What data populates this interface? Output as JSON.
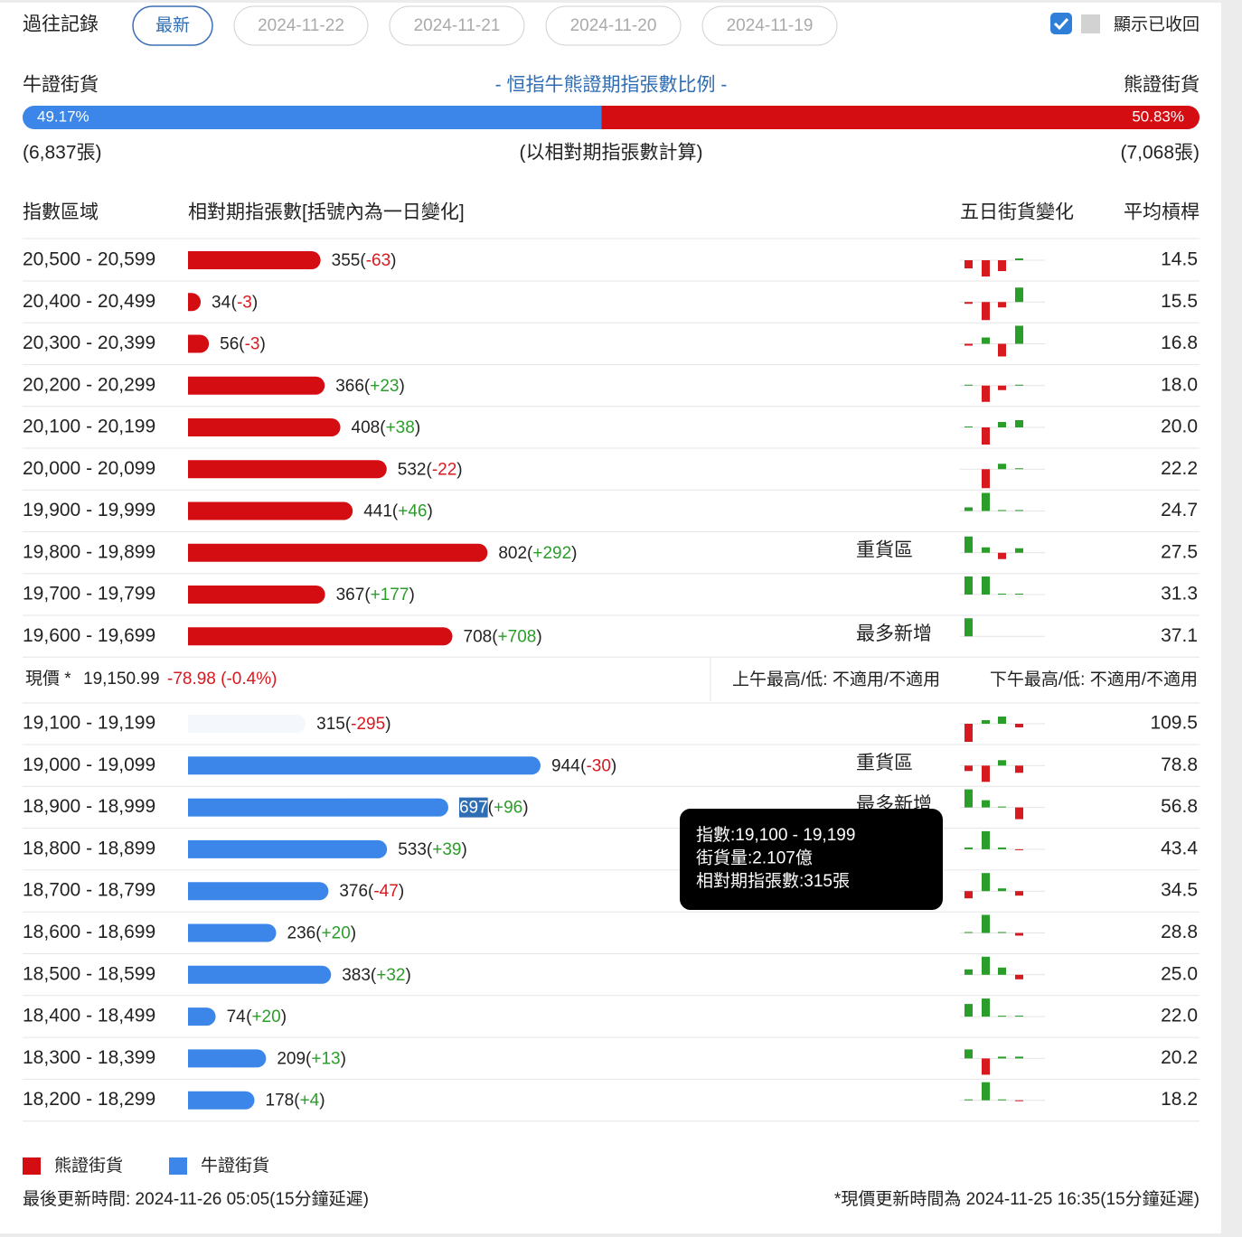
{
  "history": {
    "label": "過往記錄",
    "tabs": [
      "最新",
      "2024-11-22",
      "2024-11-21",
      "2024-11-20",
      "2024-11-19"
    ],
    "active": 0
  },
  "toggle": {
    "checked": true,
    "label": "顯示已收回"
  },
  "ratio": {
    "bull_label": "牛證街貨",
    "title": "- 恒指牛熊證期指張數比例 -",
    "bear_label": "熊證街貨",
    "bull_pct": 49.17,
    "bull_pct_label": "49.17%",
    "bear_pct": 50.83,
    "bear_pct_label": "50.83%",
    "bull_count": "(6,837張)",
    "note": "(以相對期指張數計算)",
    "bear_count": "(7,068張)"
  },
  "headers": [
    "指數區域",
    "相對期指張數[括號內為一日變化]",
    "五日街貨變化",
    "平均槓桿"
  ],
  "brackets": [
    "(",
    ")"
  ],
  "colors": {
    "bear": "#d40d12",
    "bull": "#3b86e8",
    "up": "#2a9d2a",
    "down": "#d71920"
  },
  "bear_rows": [
    {
      "range": "20,500 - 20,599",
      "count": 355,
      "change": "-63",
      "leverage": "14.5",
      "spark": [
        -9,
        -18,
        -12,
        2
      ]
    },
    {
      "range": "20,400 - 20,499",
      "count": 34,
      "change": "-3",
      "leverage": "15.5",
      "spark": [
        -2,
        -20,
        -6,
        16
      ]
    },
    {
      "range": "20,300 - 20,399",
      "count": 56,
      "change": "-3",
      "leverage": "16.8",
      "spark": [
        -2,
        7,
        -14,
        20
      ]
    },
    {
      "range": "20,200 - 20,299",
      "count": 366,
      "change": "+23",
      "leverage": "18.0",
      "spark": [
        1,
        -18,
        -5,
        1
      ]
    },
    {
      "range": "20,100 - 20,199",
      "count": 408,
      "change": "+38",
      "leverage": "20.0",
      "spark": [
        1,
        -19,
        6,
        8
      ]
    },
    {
      "range": "20,000 - 20,099",
      "count": 532,
      "change": "-22",
      "leverage": "22.2",
      "spark": [
        0,
        -21,
        6,
        1
      ]
    },
    {
      "range": "19,900 - 19,999",
      "count": 441,
      "change": "+46",
      "leverage": "24.7",
      "spark": [
        4,
        20,
        1,
        1
      ]
    },
    {
      "range": "19,800 - 19,899",
      "count": 802,
      "change": "+292",
      "leverage": "27.5",
      "spark": [
        18,
        6,
        -7,
        5
      ],
      "note": "重貨區"
    },
    {
      "range": "19,700 - 19,799",
      "count": 367,
      "change": "+177",
      "leverage": "31.3",
      "spark": [
        20,
        20,
        1,
        1
      ]
    },
    {
      "range": "19,600 - 19,699",
      "count": 708,
      "change": "+708",
      "leverage": "37.1",
      "spark": [
        20,
        0,
        0,
        0
      ],
      "note": "最多新增"
    }
  ],
  "price": {
    "label": "現價 *",
    "value": "19,150.99",
    "change": "-78.98 (-0.4%)",
    "am": "上午最高/低: 不適用/不適用",
    "pm": "下午最高/低: 不適用/不適用"
  },
  "bull_rows": [
    {
      "range": "19,100 - 19,199",
      "count": 315,
      "change": "-295",
      "leverage": "109.5",
      "spark": [
        -20,
        4,
        8,
        -4
      ],
      "faint": true
    },
    {
      "range": "19,000 - 19,099",
      "count": 944,
      "change": "-30",
      "leverage": "78.8",
      "spark": [
        -6,
        -18,
        6,
        -8
      ],
      "note": "重貨區"
    },
    {
      "range": "18,900 - 18,999",
      "count": 697,
      "change": "+96",
      "leverage": "56.8",
      "spark": [
        20,
        8,
        1,
        -13
      ],
      "note": "最多新增",
      "selected": true
    },
    {
      "range": "18,800 - 18,899",
      "count": 533,
      "change": "+39",
      "leverage": "43.4",
      "spark": [
        2,
        20,
        2,
        -1
      ]
    },
    {
      "range": "18,700 - 18,799",
      "count": 376,
      "change": "-47",
      "leverage": "34.5",
      "spark": [
        -8,
        20,
        3,
        -5
      ]
    },
    {
      "range": "18,600 - 18,699",
      "count": 236,
      "change": "+20",
      "leverage": "28.8",
      "spark": [
        1,
        20,
        1,
        -3
      ]
    },
    {
      "range": "18,500 - 18,599",
      "count": 383,
      "change": "+32",
      "leverage": "25.0",
      "spark": [
        6,
        20,
        8,
        -5
      ]
    },
    {
      "range": "18,400 - 18,499",
      "count": 74,
      "change": "+20",
      "leverage": "22.0",
      "spark": [
        14,
        20,
        1,
        1
      ]
    },
    {
      "range": "18,300 - 18,399",
      "count": 209,
      "change": "+13",
      "leverage": "20.2",
      "spark": [
        10,
        -18,
        2,
        2
      ]
    },
    {
      "range": "18,200 - 18,299",
      "count": 178,
      "change": "+4",
      "leverage": "18.2",
      "spark": [
        1,
        20,
        1,
        -1
      ]
    }
  ],
  "tooltip": {
    "lines": [
      "指數:19,100 - 19,199",
      "街貨量:2.107億",
      "相對期指張數:315張"
    ]
  },
  "legend": [
    {
      "label": "熊證街貨",
      "color": "#d40d12"
    },
    {
      "label": "牛證街貨",
      "color": "#3b86e8"
    }
  ],
  "footer": {
    "left": "最後更新時間: 2024-11-26 05:05(15分鐘延遲)",
    "right": "*現價更新時間為 2024-11-25 16:35(15分鐘延遲)"
  }
}
